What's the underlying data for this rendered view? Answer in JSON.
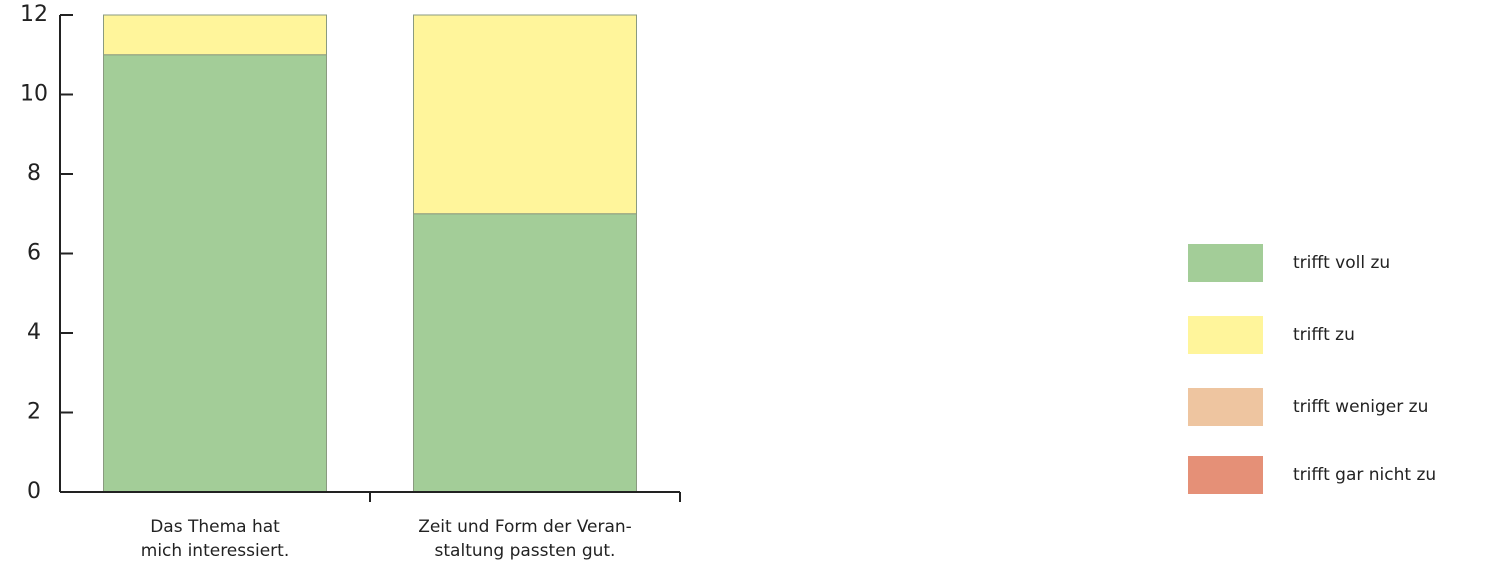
{
  "chart_data": {
    "type": "stacked_bar",
    "categories": [
      [
        "Das Thema hat",
        "mich interessiert."
      ],
      [
        "Zeit und Form der Veran-",
        "staltung passten gut."
      ]
    ],
    "series": [
      {
        "name": "trifft voll zu",
        "color": "#a3cd98",
        "values": [
          11,
          7
        ]
      },
      {
        "name": "trifft zu",
        "color": "#fff59b",
        "values": [
          1,
          5
        ]
      },
      {
        "name": "trifft weniger zu",
        "color": "#eec5a0",
        "values": [
          0,
          0
        ]
      },
      {
        "name": "trifft gar nicht zu",
        "color": "#e59077",
        "values": [
          0,
          0
        ]
      }
    ],
    "ylim": [
      0,
      12
    ],
    "yticks": [
      0,
      2,
      4,
      6,
      8,
      10,
      12
    ],
    "legend": "right"
  }
}
